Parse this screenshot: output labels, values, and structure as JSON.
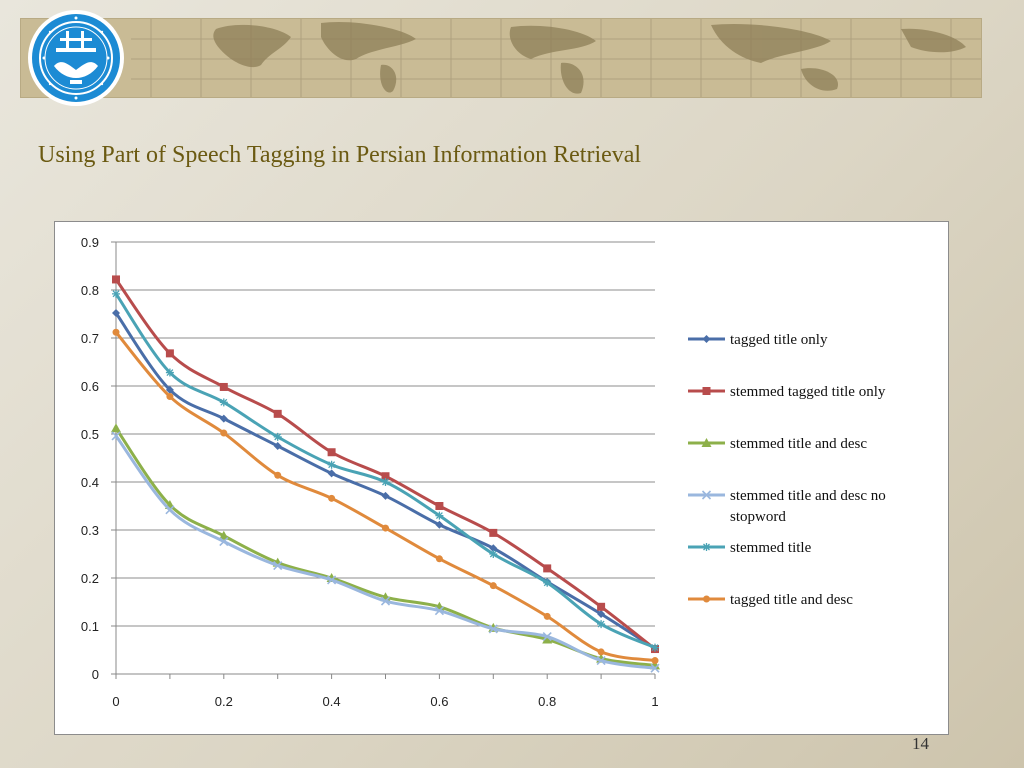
{
  "slide": {
    "title": "Using Part of Speech Tagging in Persian Information Retrieval",
    "page_number": "14"
  },
  "colors": {
    "title": "#6b5a12",
    "banner": "#c9bb95",
    "logo": "#1c8bd4"
  },
  "chart_data": {
    "type": "line",
    "title": "",
    "xlabel": "",
    "ylabel": "",
    "x": [
      0,
      0.1,
      0.2,
      0.3,
      0.4,
      0.5,
      0.6,
      0.7,
      0.8,
      0.9,
      1
    ],
    "x_tick_labels": [
      "0",
      "0.2",
      "0.4",
      "0.6",
      "0.8",
      "1"
    ],
    "y_tick_labels": [
      "0",
      "0.1",
      "0.2",
      "0.3",
      "0.4",
      "0.5",
      "0.6",
      "0.7",
      "0.8",
      "0.9"
    ],
    "xlim": [
      0,
      1
    ],
    "ylim": [
      0,
      0.9
    ],
    "grid": "horizontal",
    "legend_position": "right",
    "series": [
      {
        "name": "tagged title only",
        "color": "#4a6ea8",
        "marker": "diamond",
        "values": [
          0.752,
          0.592,
          0.532,
          0.475,
          0.418,
          0.371,
          0.311,
          0.262,
          0.192,
          0.125,
          0.053
        ]
      },
      {
        "name": "stemmed tagged title only",
        "color": "#b84c4c",
        "marker": "square",
        "values": [
          0.822,
          0.668,
          0.598,
          0.542,
          0.462,
          0.412,
          0.35,
          0.294,
          0.22,
          0.14,
          0.052
        ]
      },
      {
        "name": "stemmed title and desc",
        "color": "#8db04a",
        "marker": "triangle",
        "values": [
          0.512,
          0.352,
          0.288,
          0.232,
          0.2,
          0.16,
          0.14,
          0.096,
          0.072,
          0.032,
          0.018
        ]
      },
      {
        "name": "stemmed title and desc no stopword",
        "color": "#9ab7de",
        "marker": "x",
        "values": [
          0.496,
          0.342,
          0.276,
          0.226,
          0.196,
          0.152,
          0.132,
          0.094,
          0.078,
          0.028,
          0.012
        ]
      },
      {
        "name": "stemmed title",
        "color": "#4aa3b5",
        "marker": "star",
        "values": [
          0.792,
          0.628,
          0.566,
          0.494,
          0.436,
          0.4,
          0.33,
          0.25,
          0.19,
          0.104,
          0.055
        ]
      },
      {
        "name": "tagged title and desc",
        "color": "#e08a3c",
        "marker": "circle",
        "values": [
          0.712,
          0.578,
          0.502,
          0.414,
          0.366,
          0.304,
          0.24,
          0.184,
          0.12,
          0.046,
          0.028
        ]
      }
    ]
  }
}
